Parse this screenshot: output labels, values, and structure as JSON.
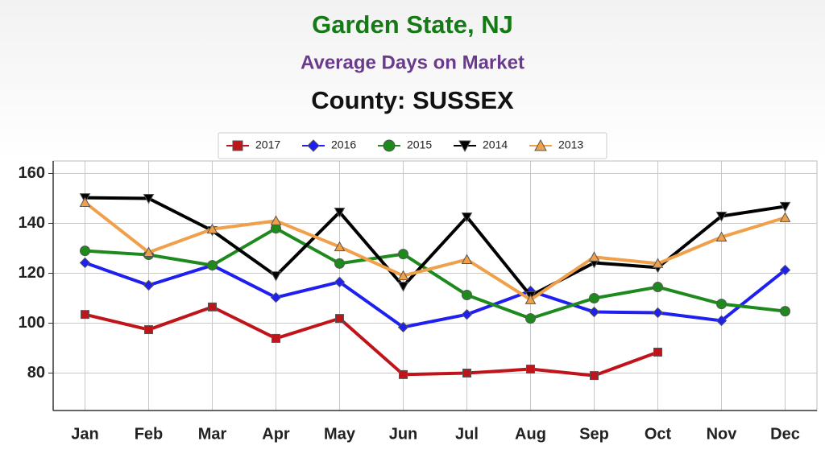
{
  "chart_data": {
    "type": "line",
    "title": "Garden State, NJ",
    "subtitle": "Average Days on Market",
    "subtitle2": "County: SUSSEX",
    "categories": [
      "Jan",
      "Feb",
      "Mar",
      "Apr",
      "May",
      "Jun",
      "Jul",
      "Aug",
      "Sep",
      "Oct",
      "Nov",
      "Dec"
    ],
    "series": [
      {
        "name": "2017",
        "color": "#c0141b",
        "marker": "square",
        "values": [
          103.5,
          97.4,
          106.5,
          93.9,
          101.9,
          79.4,
          80,
          81.6,
          79,
          88.4,
          null,
          null
        ]
      },
      {
        "name": "2016",
        "color": "#1f1ff0",
        "marker": "diamond",
        "values": [
          124.2,
          115.2,
          123.2,
          110.3,
          116.5,
          98.4,
          103.5,
          112.9,
          104.5,
          104.2,
          101,
          121.3
        ]
      },
      {
        "name": "2015",
        "color": "#1e8a1e",
        "marker": "circle",
        "values": [
          129,
          127.4,
          123.2,
          138,
          123.9,
          127.7,
          111.3,
          101.9,
          110,
          114.5,
          107.7,
          104.8
        ]
      },
      {
        "name": "2014",
        "color": "#000000",
        "marker": "triangle-down",
        "values": [
          150.3,
          150,
          137.1,
          119,
          144.5,
          114.8,
          142.6,
          111,
          124.2,
          122.3,
          142.9,
          146.8
        ]
      },
      {
        "name": "2013",
        "color": "#f0a04a",
        "marker": "triangle-up",
        "values": [
          148.4,
          128.4,
          137.7,
          141,
          130.6,
          119,
          125.5,
          109.4,
          126.5,
          123.9,
          134.5,
          142.3
        ]
      }
    ],
    "ylim": [
      65,
      165
    ],
    "yticks": [
      80,
      100,
      120,
      140,
      160
    ],
    "grid": true,
    "legend": "top"
  }
}
